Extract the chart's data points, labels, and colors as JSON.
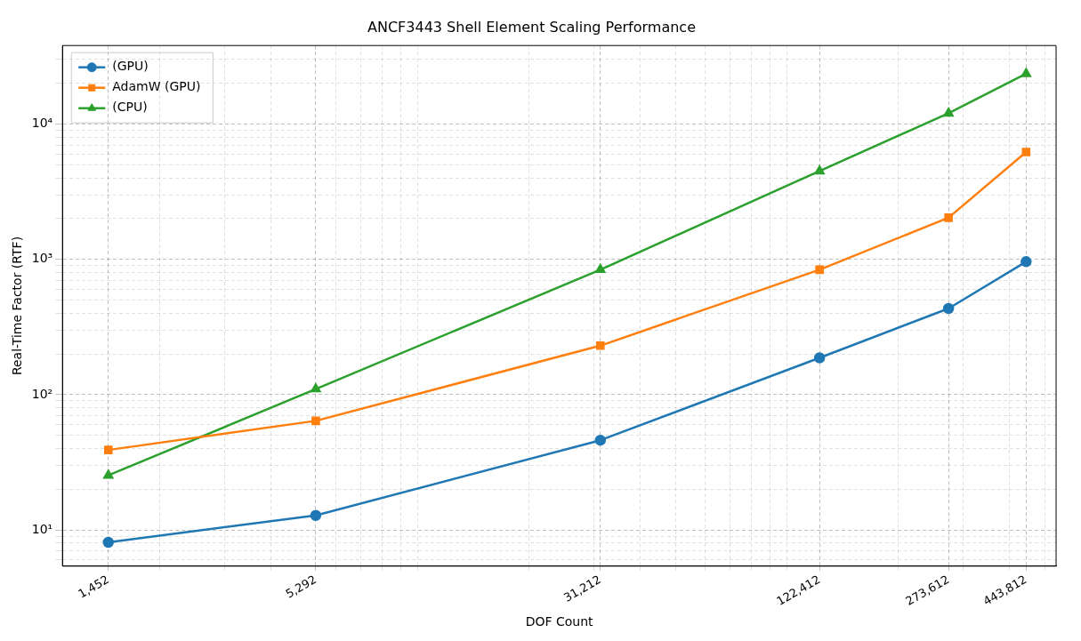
{
  "chart_data": {
    "type": "line",
    "title": "ANCF3443 Shell Element Scaling Performance",
    "xlabel": "DOF Count",
    "ylabel": "Real-Time Factor (RTF)",
    "log": "xy",
    "grid": true,
    "legend": "top left",
    "x": [
      1452,
      5292,
      31212,
      122412,
      273612,
      443812
    ],
    "xlim": [
      1091,
      535000
    ],
    "xticks": [
      {
        "value": 1452,
        "label": "1,452"
      },
      {
        "value": 5292,
        "label": "5,292"
      },
      {
        "value": 31212,
        "label": "31,212"
      },
      {
        "value": 122412,
        "label": "122,412"
      },
      {
        "value": 273612,
        "label": "273,612"
      },
      {
        "value": 443812,
        "label": "443,812"
      },
      {
        "value": 2000,
        "label": null
      },
      {
        "value": 3000,
        "label": null
      },
      {
        "value": 4000,
        "label": null
      },
      {
        "value": 6000,
        "label": null
      },
      {
        "value": 7000,
        "label": null
      },
      {
        "value": 8000,
        "label": null
      },
      {
        "value": 9000,
        "label": null
      },
      {
        "value": 10000,
        "label": null
      },
      {
        "value": 20000,
        "label": null
      },
      {
        "value": 30000,
        "label": null
      },
      {
        "value": 40000,
        "label": null
      },
      {
        "value": 50000,
        "label": null
      },
      {
        "value": 60000,
        "label": null
      },
      {
        "value": 70000,
        "label": null
      },
      {
        "value": 80000,
        "label": null
      },
      {
        "value": 90000,
        "label": null
      },
      {
        "value": 100000,
        "label": null
      },
      {
        "value": 200000,
        "label": null
      },
      {
        "value": 300000,
        "label": null
      },
      {
        "value": 400000,
        "label": null
      },
      {
        "value": 500000,
        "label": null
      }
    ],
    "ylim": [
      5.4,
      38000
    ],
    "yticks": [
      {
        "value": 10,
        "label": "10¹"
      },
      {
        "value": 100,
        "label": "10²"
      },
      {
        "value": 1000,
        "label": "10³"
      },
      {
        "value": 10000,
        "label": "10⁴"
      },
      {
        "value": 6,
        "label": null
      },
      {
        "value": 7,
        "label": null
      },
      {
        "value": 8,
        "label": null
      },
      {
        "value": 9,
        "label": null
      },
      {
        "value": 20,
        "label": null
      },
      {
        "value": 30,
        "label": null
      },
      {
        "value": 40,
        "label": null
      },
      {
        "value": 50,
        "label": null
      },
      {
        "value": 60,
        "label": null
      },
      {
        "value": 70,
        "label": null
      },
      {
        "value": 80,
        "label": null
      },
      {
        "value": 90,
        "label": null
      },
      {
        "value": 200,
        "label": null
      },
      {
        "value": 300,
        "label": null
      },
      {
        "value": 400,
        "label": null
      },
      {
        "value": 500,
        "label": null
      },
      {
        "value": 600,
        "label": null
      },
      {
        "value": 700,
        "label": null
      },
      {
        "value": 800,
        "label": null
      },
      {
        "value": 900,
        "label": null
      },
      {
        "value": 2000,
        "label": null
      },
      {
        "value": 3000,
        "label": null
      },
      {
        "value": 4000,
        "label": null
      },
      {
        "value": 5000,
        "label": null
      },
      {
        "value": 6000,
        "label": null
      },
      {
        "value": 7000,
        "label": null
      },
      {
        "value": 8000,
        "label": null
      },
      {
        "value": 9000,
        "label": null
      },
      {
        "value": 20000,
        "label": null
      },
      {
        "value": 30000,
        "label": null
      }
    ],
    "series": [
      {
        "name": "(GPU)",
        "color": "#1f77b4",
        "marker": "circle",
        "values": [
          8.1,
          12.8,
          46,
          187,
          433,
          960
        ]
      },
      {
        "name": "AdamW (GPU)",
        "color": "#ff7f0e",
        "marker": "square",
        "values": [
          39,
          64,
          230,
          838,
          2030,
          6200
        ]
      },
      {
        "name": "(CPU)",
        "color": "#2ca02c",
        "marker": "triangle",
        "values": [
          25.3,
          110,
          838,
          4490,
          12000,
          23500
        ]
      }
    ]
  }
}
